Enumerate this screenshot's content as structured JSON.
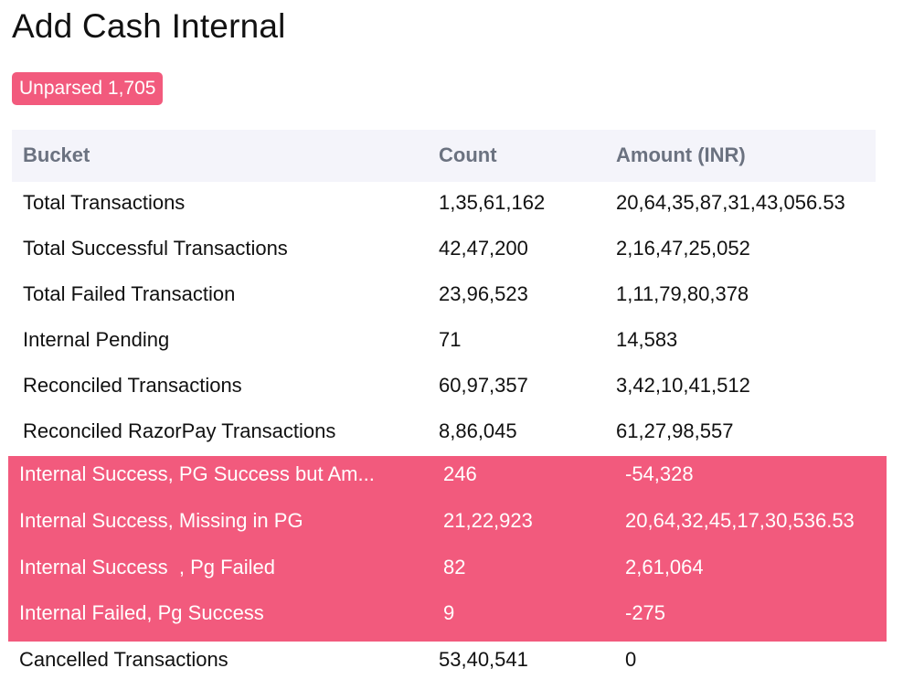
{
  "page": {
    "title": "Add Cash Internal",
    "badge": "Unparsed 1,705"
  },
  "colors": {
    "accent": "#f25a7d",
    "header_bg": "#f4f4fa",
    "header_text": "#6b7280"
  },
  "table": {
    "columns": [
      "Bucket",
      "Count",
      "Amount (INR)"
    ],
    "rows": [
      {
        "bucket": "Total Transactions",
        "count": "1,35,61,162",
        "amount": "20,64,35,87,31,43,056.53",
        "highlighted": false
      },
      {
        "bucket": "Total Successful Transactions",
        "count": "42,47,200",
        "amount": "2,16,47,25,052",
        "highlighted": false
      },
      {
        "bucket": "Total Failed Transaction",
        "count": "23,96,523",
        "amount": "1,11,79,80,378",
        "highlighted": false
      },
      {
        "bucket": "Internal Pending",
        "count": "71",
        "amount": "14,583",
        "highlighted": false
      },
      {
        "bucket": "Reconciled Transactions",
        "count": "60,97,357",
        "amount": "3,42,10,41,512",
        "highlighted": false
      },
      {
        "bucket": "Reconciled RazorPay Transactions",
        "count": "8,86,045",
        "amount": "61,27,98,557",
        "highlighted": false
      },
      {
        "bucket": "Internal Success, PG Success but Am...",
        "count": "246",
        "amount": "-54,328",
        "highlighted": true
      },
      {
        "bucket": "Internal Success, Missing in PG",
        "count": "21,22,923",
        "amount": "20,64,32,45,17,30,536.53",
        "highlighted": true
      },
      {
        "bucket": "Internal Success  , Pg Failed",
        "count": "82",
        "amount": "2,61,064",
        "highlighted": true
      },
      {
        "bucket": "Internal Failed, Pg Success",
        "count": "9",
        "amount": "-275",
        "highlighted": true
      },
      {
        "bucket": "Cancelled Transactions",
        "count": "53,40,541",
        "amount": "0",
        "highlighted": false
      }
    ]
  }
}
